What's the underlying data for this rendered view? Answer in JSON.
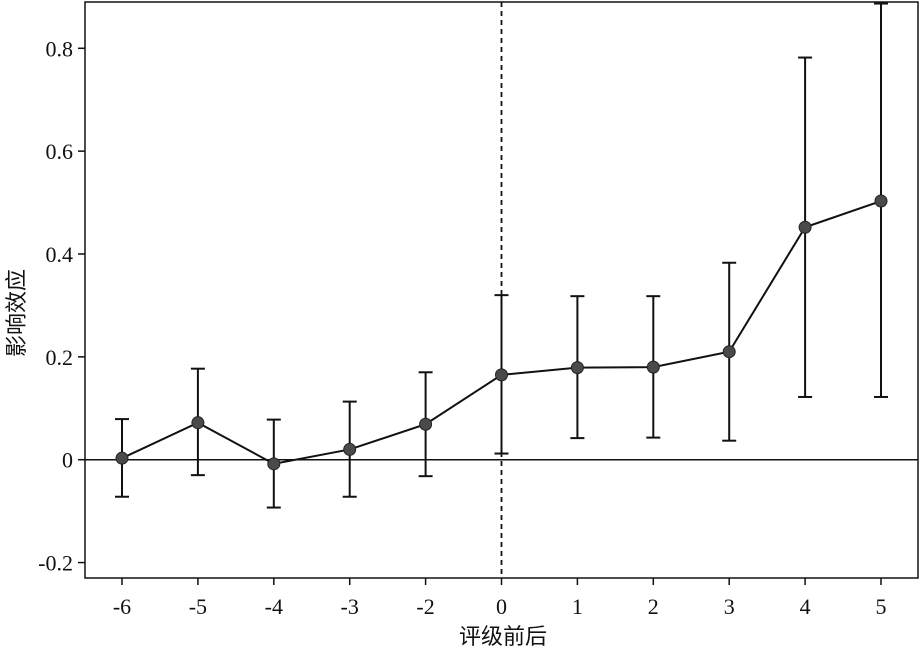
{
  "chart_data": {
    "type": "line",
    "title": "",
    "xlabel": "评级前后",
    "ylabel": "影响效应",
    "x": [
      -6,
      -5,
      -4,
      -3,
      -2,
      0,
      1,
      2,
      3,
      4,
      5
    ],
    "x_tick_labels": [
      "-6",
      "-5",
      "-4",
      "-3",
      "-2",
      "0",
      "1",
      "2",
      "3",
      "4",
      "5"
    ],
    "y_ticks": [
      -0.2,
      0,
      0.2,
      0.4,
      0.6,
      0.8
    ],
    "y_tick_labels": [
      "-0.2",
      "0",
      "0.2",
      "0.4",
      "0.6",
      "0.8"
    ],
    "ylim": [
      -0.23,
      0.89
    ],
    "series": [
      {
        "values": [
          0.003,
          0.072,
          -0.008,
          0.02,
          0.069,
          0.165,
          0.179,
          0.18,
          0.21,
          0.452,
          0.503
        ],
        "ci_lower": [
          -0.072,
          -0.03,
          -0.093,
          -0.072,
          -0.032,
          0.012,
          0.042,
          0.043,
          0.037,
          0.122,
          0.122
        ],
        "ci_upper": [
          0.079,
          0.177,
          0.078,
          0.113,
          0.17,
          0.32,
          0.318,
          0.318,
          0.383,
          0.782,
          0.887
        ]
      }
    ],
    "reference_line_x": 0,
    "reference_line_y": 0,
    "grid": false,
    "colors": {
      "line": "#111111",
      "marker": "#4a4a4a"
    }
  }
}
